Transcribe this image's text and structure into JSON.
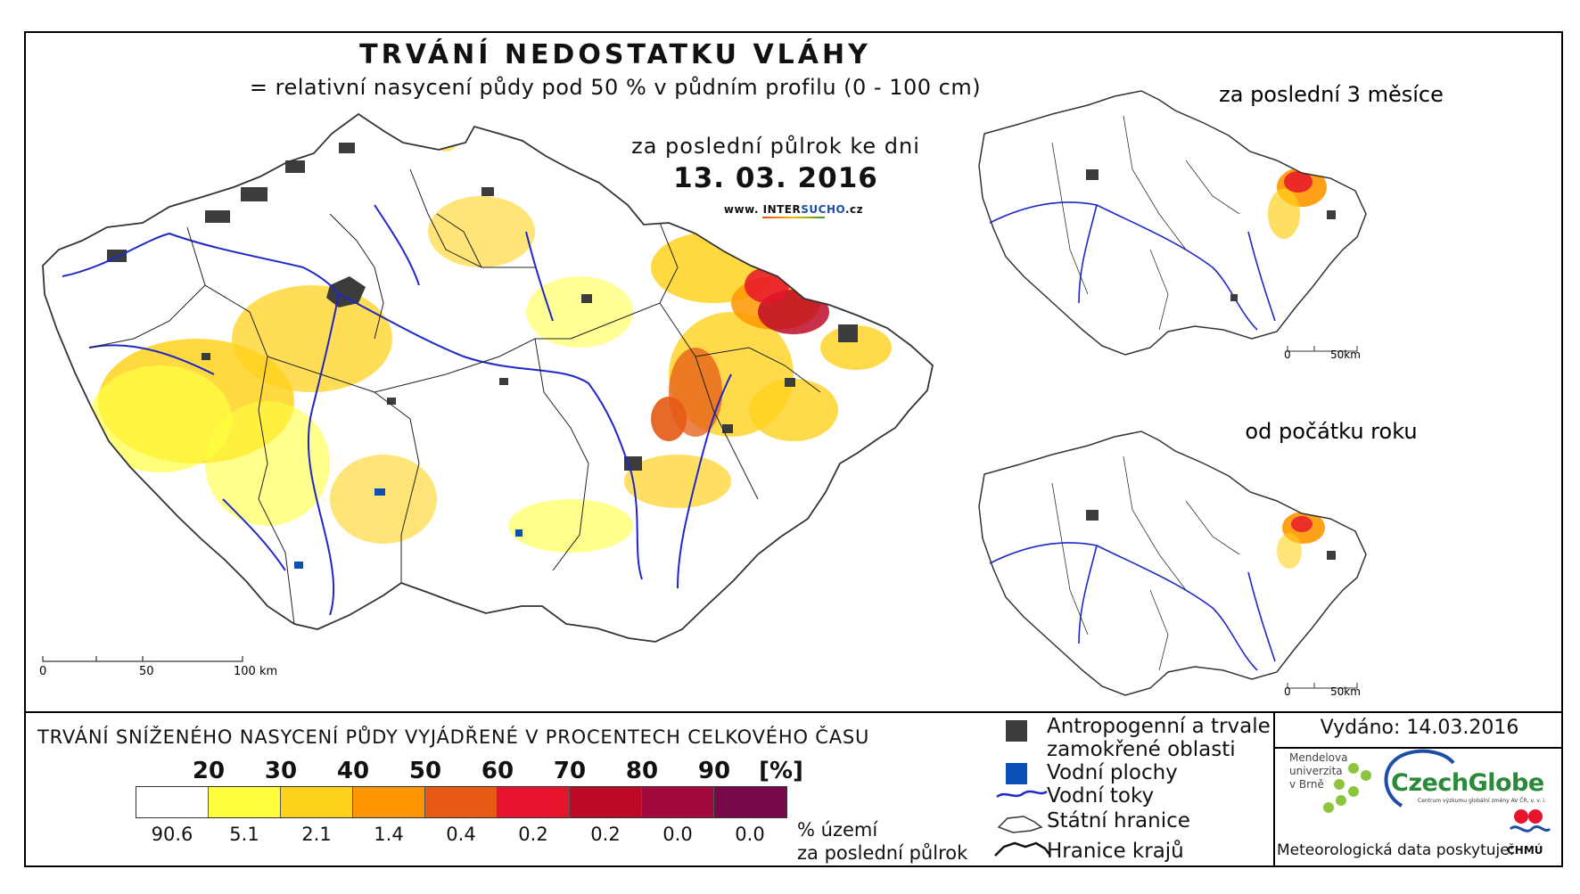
{
  "map": {
    "title": "TRVÁNÍ NEDOSTATKU VLÁHY",
    "subtitle": "= relativní nasycení půdy pod 50 % v půdním profilu (0 - 100 cm)",
    "period_label": "za poslední půlrok ke dni",
    "date": "13. 03. 2016",
    "website_prefix": "www. INTER",
    "website_accent": "SUCHO",
    "website_suffix": ".cz",
    "scale": {
      "zero": "0",
      "mid": "50",
      "end": "100 km"
    }
  },
  "inset_top": {
    "label": "za poslední 3 měsíce",
    "scale_zero": "0",
    "scale_end": "50km"
  },
  "inset_bottom": {
    "label": "od počátku roku",
    "scale_zero": "0",
    "scale_end": "50km"
  },
  "legend": {
    "title": "TRVÁNÍ SNÍŽENÉHO NASYCENÍ PŮDY VYJÁDŘENÉ V PROCENTECH CELKOVÉHO ČASU",
    "ticks": [
      "20",
      "30",
      "40",
      "50",
      "60",
      "70",
      "80",
      "90",
      "[%]"
    ],
    "colors": [
      "#ffffff",
      "#ffff40",
      "#ffd21e",
      "#ff9600",
      "#e65a14",
      "#e6142d",
      "#be0a28",
      "#a00a3c",
      "#780a4b"
    ],
    "percentages": [
      "90.6",
      "5.1",
      "2.1",
      "1.4",
      "0.4",
      "0.2",
      "0.2",
      "0.0",
      "0.0"
    ],
    "unit_line1": "% území",
    "unit_line2": "za poslední půlrok"
  },
  "symbols": {
    "anthropogenic_line1": "Antropogenní a trvale",
    "anthropogenic_line2": "zamokřené oblasti",
    "water_surfaces": "Vodní plochy",
    "rivers": "Vodní toky",
    "state_border": "Státní hranice",
    "region_border": "Hranice krajů",
    "colors": {
      "anthropogenic": "#3c3c3c",
      "water": "#0a50b4",
      "river": "#1e28c8"
    }
  },
  "credits": {
    "issued": "Vydáno: 14.03.2016",
    "mendel_line1": "Mendelova",
    "mendel_line2": "univerzita",
    "mendel_line3": "v Brně",
    "czechglobe": "CzechGlobe",
    "czechglobe_sub": "Centrum výzkumu globální změny AV ČR, v. v. i.",
    "meteo": "Meteorologická data poskytuje:",
    "chmu": "ČHMÚ"
  }
}
